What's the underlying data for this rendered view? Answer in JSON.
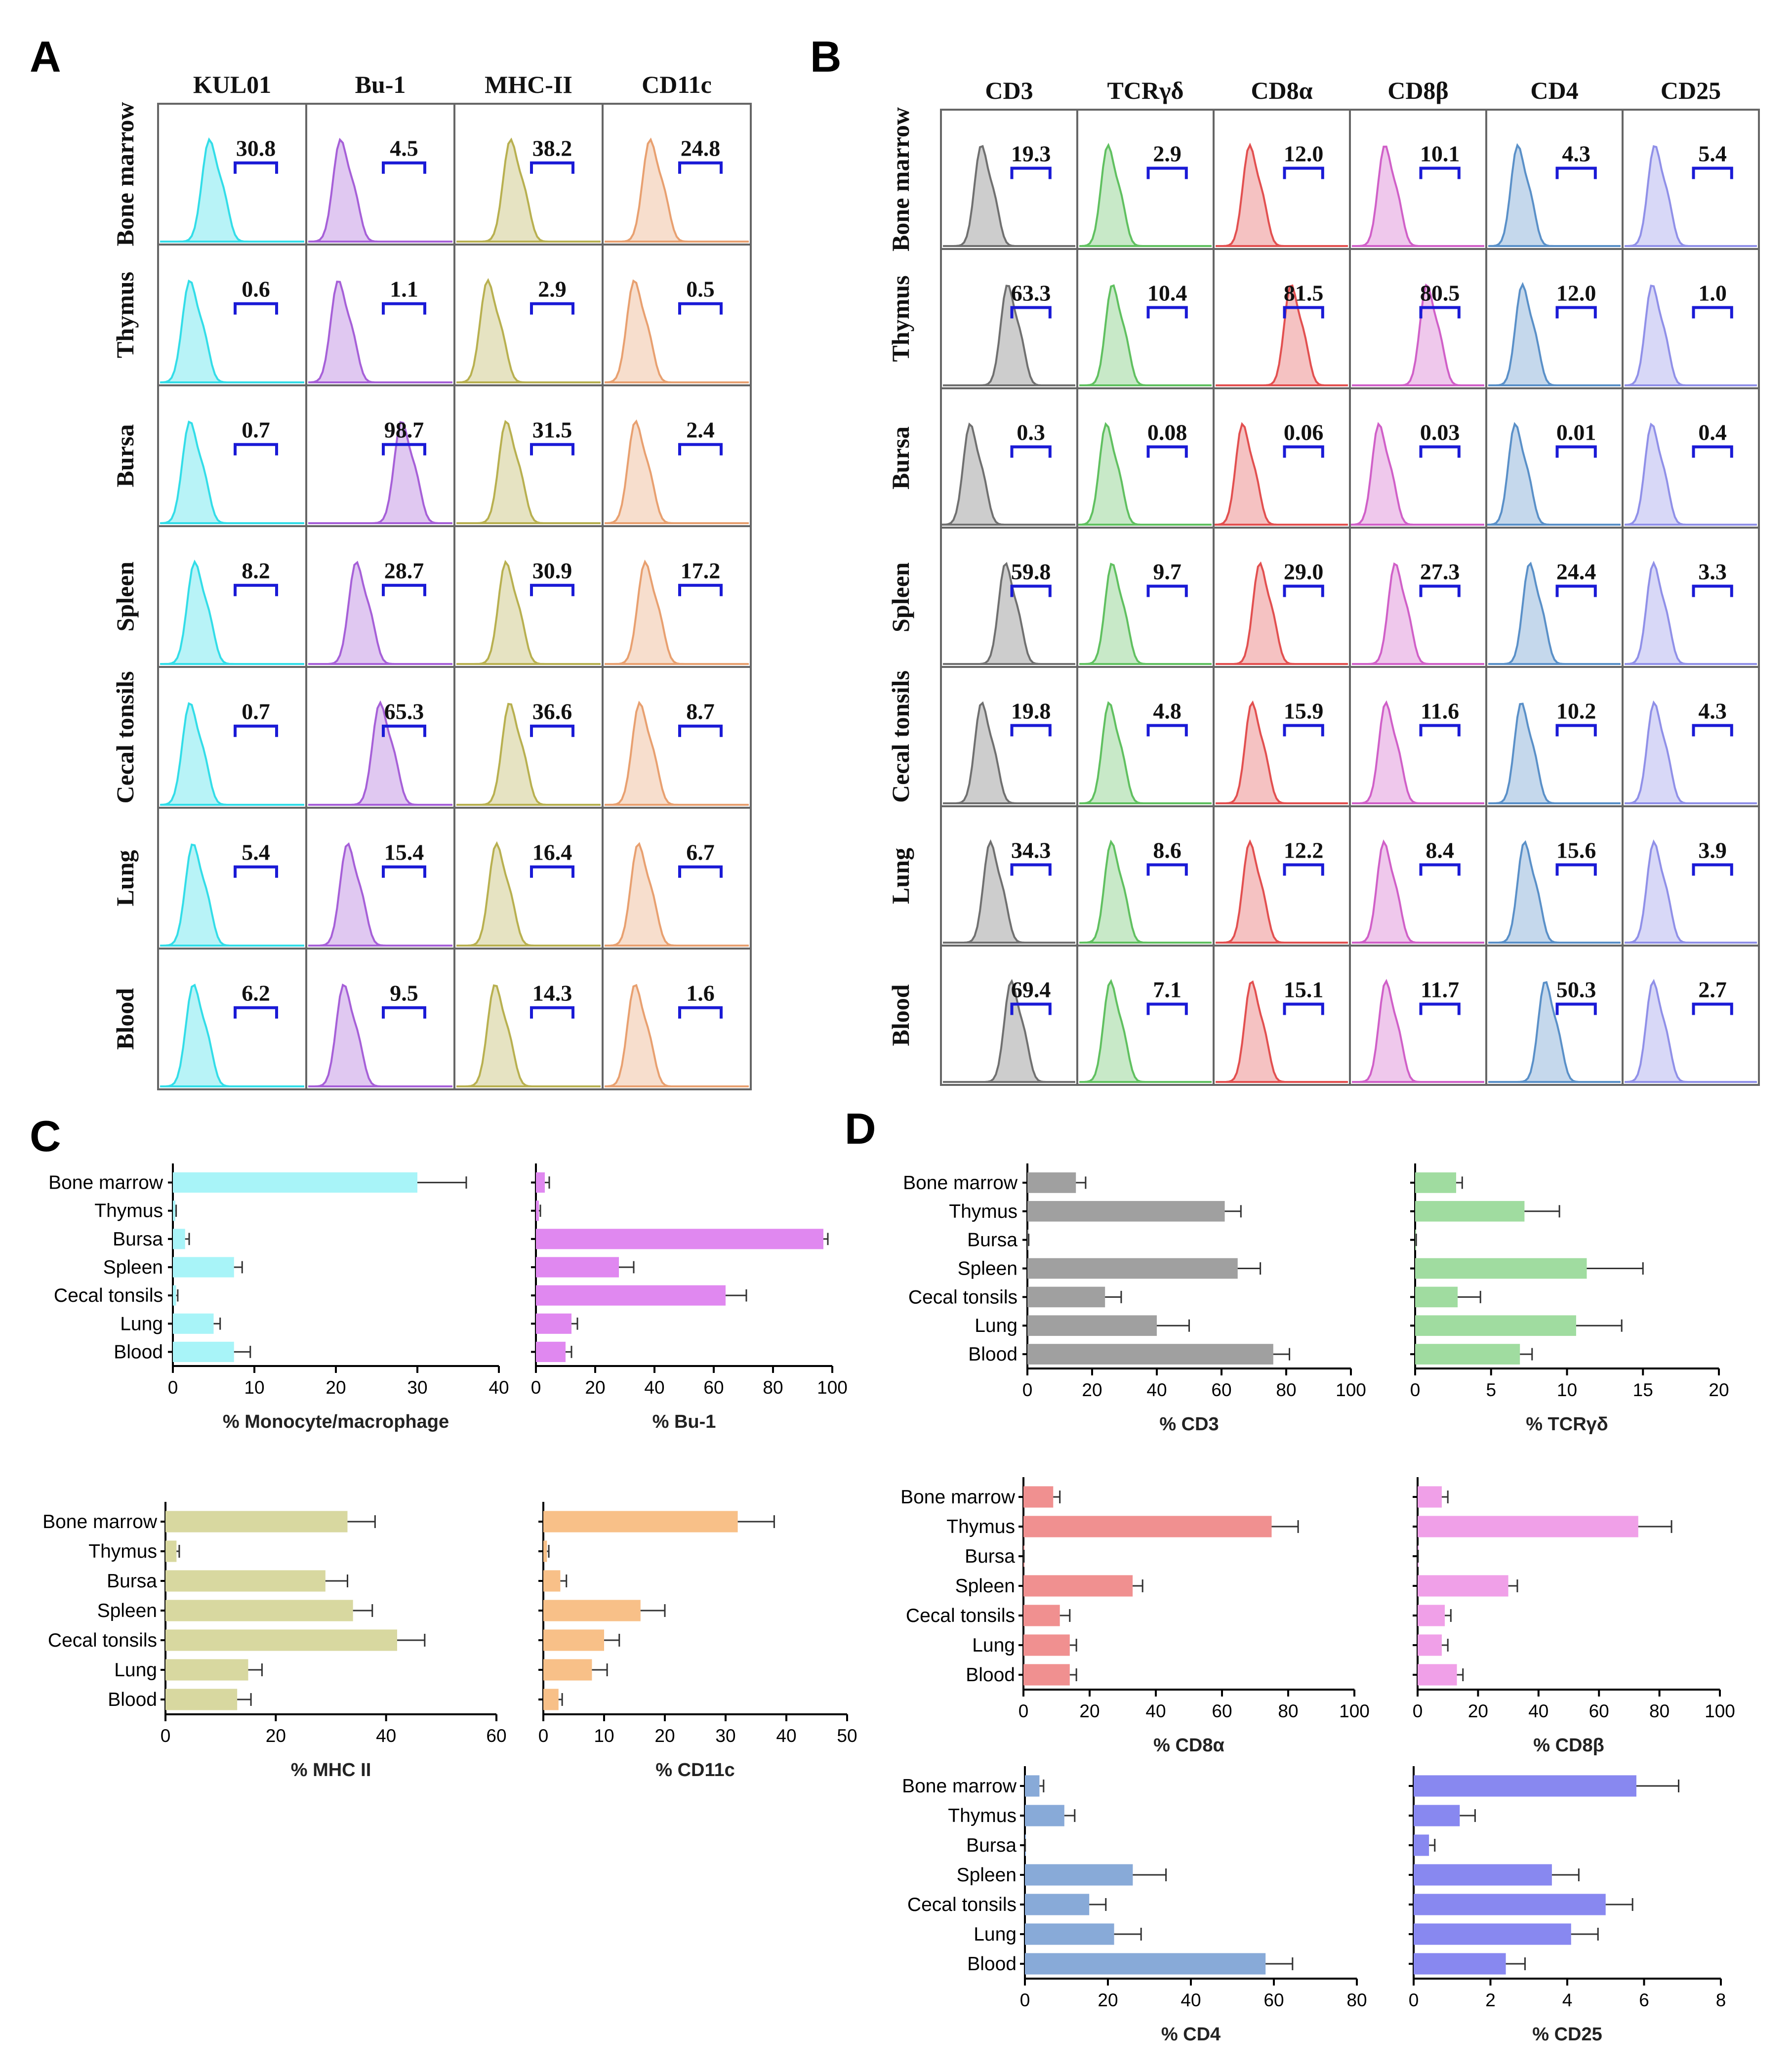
{
  "panels": {
    "a": "A",
    "b": "B",
    "c": "C",
    "d": "D"
  },
  "tissues": [
    "Bone marrow",
    "Thymus",
    "Bursa",
    "Spleen",
    "Cecal tonsils",
    "Lung",
    "Blood"
  ],
  "panel_a": {
    "markers": [
      {
        "name": "KUL01",
        "color": "#33dde8",
        "values": [
          "30.8",
          "0.6",
          "0.7",
          "8.2",
          "0.7",
          "5.4",
          "6.2"
        ]
      },
      {
        "name": "Bu-1",
        "color": "#a660d8",
        "values": [
          "4.5",
          "1.1",
          "98.7",
          "28.7",
          "65.3",
          "15.4",
          "9.5"
        ]
      },
      {
        "name": "MHC-II",
        "color": "#b8b050",
        "values": [
          "38.2",
          "2.9",
          "31.5",
          "30.9",
          "36.6",
          "16.4",
          "14.3"
        ]
      },
      {
        "name": "CD11c",
        "color": "#e8a070",
        "values": [
          "24.8",
          "0.5",
          "2.4",
          "17.2",
          "8.7",
          "6.7",
          "1.6"
        ]
      }
    ]
  },
  "panel_b": {
    "markers": [
      {
        "name": "CD3",
        "color": "#707070",
        "values": [
          "19.3",
          "63.3",
          "0.3",
          "59.8",
          "19.8",
          "34.3",
          "69.4"
        ]
      },
      {
        "name": "TCRγδ",
        "color": "#60c060",
        "values": [
          "2.9",
          "10.4",
          "0.08",
          "9.7",
          "4.8",
          "8.6",
          "7.1"
        ]
      },
      {
        "name": "CD8α",
        "color": "#e25050",
        "values": [
          "12.0",
          "81.5",
          "0.06",
          "29.0",
          "15.9",
          "12.2",
          "15.1"
        ]
      },
      {
        "name": "CD8β",
        "color": "#d060c8",
        "values": [
          "10.1",
          "80.5",
          "0.03",
          "27.3",
          "11.6",
          "8.4",
          "11.7"
        ]
      },
      {
        "name": "CD4",
        "color": "#5a90c8",
        "values": [
          "4.3",
          "12.0",
          "0.01",
          "24.4",
          "10.2",
          "15.6",
          "50.3"
        ]
      },
      {
        "name": "CD25",
        "color": "#9090e8",
        "values": [
          "5.4",
          "1.0",
          "0.4",
          "3.3",
          "4.3",
          "3.9",
          "2.7"
        ]
      }
    ]
  },
  "chart_data": [
    {
      "type": "bar",
      "orientation": "horizontal",
      "panel": "C",
      "xlabel": "% Monocyte/macrophage",
      "categories": [
        "Bone marrow",
        "Thymus",
        "Bursa",
        "Spleen",
        "Cecal tonsils",
        "Lung",
        "Blood"
      ],
      "values": [
        30,
        0.3,
        1.5,
        7.5,
        0.4,
        5,
        7.5
      ],
      "errors": [
        6,
        0.1,
        0.5,
        1,
        0.2,
        0.8,
        2
      ],
      "xlim": [
        0,
        40
      ],
      "xticks": [
        0,
        10,
        20,
        30,
        40
      ],
      "color": "#a8f4f8"
    },
    {
      "type": "bar",
      "orientation": "horizontal",
      "panel": "C",
      "xlabel": "% Bu-1",
      "categories": [
        "Bone marrow",
        "Thymus",
        "Bursa",
        "Spleen",
        "Cecal tonsils",
        "Lung",
        "Blood"
      ],
      "values": [
        3,
        1,
        97,
        28,
        64,
        12,
        10
      ],
      "errors": [
        1.5,
        0.5,
        1.5,
        5,
        7,
        2,
        2
      ],
      "xlim": [
        0,
        100
      ],
      "xticks": [
        0,
        20,
        40,
        60,
        80,
        100
      ],
      "color": "#e088f0"
    },
    {
      "type": "bar",
      "orientation": "horizontal",
      "panel": "C",
      "xlabel": "% MHC II",
      "categories": [
        "Bone marrow",
        "Thymus",
        "Bursa",
        "Spleen",
        "Cecal tonsils",
        "Lung",
        "Blood"
      ],
      "values": [
        33,
        2,
        29,
        34,
        42,
        15,
        13
      ],
      "errors": [
        5,
        0.5,
        4,
        3.5,
        5,
        2.5,
        2.5
      ],
      "xlim": [
        0,
        60
      ],
      "xticks": [
        0,
        20,
        40,
        60
      ],
      "color": "#d8d8a0"
    },
    {
      "type": "bar",
      "orientation": "horizontal",
      "panel": "C",
      "xlabel": "% CD11c",
      "categories": [
        "Bone marrow",
        "Thymus",
        "Bursa",
        "Spleen",
        "Cecal tonsils",
        "Lung",
        "Blood"
      ],
      "values": [
        32,
        0.6,
        2.8,
        16,
        10,
        8,
        2.5
      ],
      "errors": [
        6,
        0.3,
        1,
        4,
        2.5,
        2.5,
        0.6
      ],
      "xlim": [
        0,
        50
      ],
      "xticks": [
        0,
        10,
        20,
        30,
        40,
        50
      ],
      "color": "#f8c088"
    },
    {
      "type": "bar",
      "orientation": "horizontal",
      "panel": "D",
      "xlabel": "% CD3",
      "categories": [
        "Bone marrow",
        "Thymus",
        "Bursa",
        "Spleen",
        "Cecal tonsils",
        "Lung",
        "Blood"
      ],
      "values": [
        15,
        61,
        0.3,
        65,
        24,
        40,
        76
      ],
      "errors": [
        3,
        5,
        0.1,
        7,
        5,
        10,
        5
      ],
      "xlim": [
        0,
        100
      ],
      "xticks": [
        0,
        20,
        40,
        60,
        80,
        100
      ],
      "color": "#a0a0a0"
    },
    {
      "type": "bar",
      "orientation": "horizontal",
      "panel": "D",
      "xlabel": "% TCRγδ",
      "categories": [
        "Bone marrow",
        "Thymus",
        "Bursa",
        "Spleen",
        "Cecal tonsils",
        "Lung",
        "Blood"
      ],
      "values": [
        2.7,
        7.2,
        0.05,
        11.3,
        2.8,
        10.6,
        6.9
      ],
      "errors": [
        0.4,
        2.3,
        0.02,
        3.7,
        1.5,
        3,
        0.8
      ],
      "xlim": [
        0,
        20
      ],
      "xticks": [
        0,
        5,
        10,
        15,
        20
      ],
      "color": "#a0dca0"
    },
    {
      "type": "bar",
      "orientation": "horizontal",
      "panel": "D",
      "xlabel": "% CD8α",
      "categories": [
        "Bone marrow",
        "Thymus",
        "Bursa",
        "Spleen",
        "Cecal tonsils",
        "Lung",
        "Blood"
      ],
      "values": [
        9,
        75,
        0.1,
        33,
        11,
        14,
        14
      ],
      "errors": [
        2,
        8,
        0.05,
        3,
        3,
        2,
        2
      ],
      "xlim": [
        0,
        100
      ],
      "xticks": [
        0,
        20,
        40,
        60,
        80,
        100
      ],
      "color": "#f09090"
    },
    {
      "type": "bar",
      "orientation": "horizontal",
      "panel": "D",
      "xlabel": "% CD8β",
      "categories": [
        "Bone marrow",
        "Thymus",
        "Bursa",
        "Spleen",
        "Cecal tonsils",
        "Lung",
        "Blood"
      ],
      "values": [
        8,
        73,
        0.1,
        30,
        9,
        8,
        13
      ],
      "errors": [
        2,
        11,
        0.05,
        3,
        2,
        2,
        2
      ],
      "xlim": [
        0,
        100
      ],
      "xticks": [
        0,
        20,
        40,
        60,
        80,
        100
      ],
      "color": "#f0a0e8"
    },
    {
      "type": "bar",
      "orientation": "horizontal",
      "panel": "D",
      "xlabel": "% CD4",
      "categories": [
        "Bone marrow",
        "Thymus",
        "Bursa",
        "Spleen",
        "Cecal tonsils",
        "Lung",
        "Blood"
      ],
      "values": [
        3.5,
        9.5,
        0.05,
        26,
        15.5,
        21.5,
        58
      ],
      "errors": [
        1,
        2.5,
        0.02,
        8,
        4,
        6.5,
        6.5
      ],
      "xlim": [
        0,
        80
      ],
      "xticks": [
        0,
        20,
        40,
        60,
        80
      ],
      "color": "#88aad8"
    },
    {
      "type": "bar",
      "orientation": "horizontal",
      "panel": "D",
      "xlabel": "% CD25",
      "categories": [
        "Bone marrow",
        "Thymus",
        "Bursa",
        "Spleen",
        "Cecal tonsils",
        "Lung",
        "Blood"
      ],
      "values": [
        5.8,
        1.2,
        0.4,
        3.6,
        5,
        4.1,
        2.4
      ],
      "errors": [
        1.1,
        0.4,
        0.15,
        0.7,
        0.7,
        0.7,
        0.5
      ],
      "xlim": [
        0,
        8
      ],
      "xticks": [
        0,
        2,
        4,
        6,
        8
      ],
      "color": "#8888f0"
    }
  ]
}
